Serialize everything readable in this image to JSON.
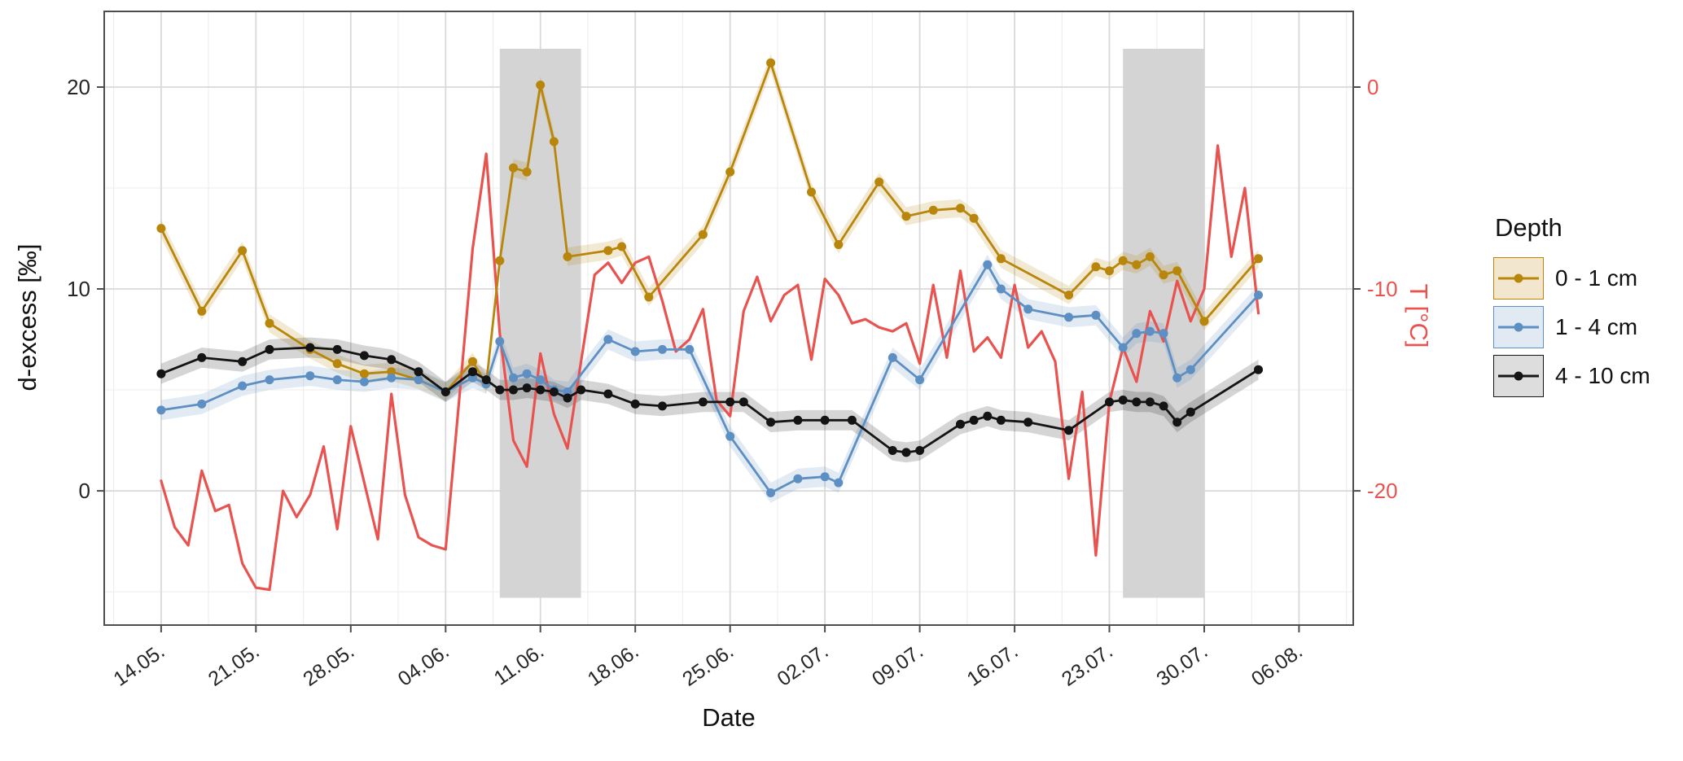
{
  "chart_data": {
    "type": "line",
    "xlabel": "Date",
    "ylabel_left": "d-excess [‰]",
    "ylabel_right": "T [°C]",
    "grid": true,
    "legend_position": "right",
    "x_domain_days": [
      -4.2,
      88.0
    ],
    "y_domain_left": [
      -6.65,
      23.75
    ],
    "x_ticks": {
      "days": [
        0,
        7,
        14,
        21,
        28,
        35,
        42,
        49,
        56,
        63,
        70,
        77,
        84
      ],
      "labels": [
        "14.05.",
        "21.05.",
        "28.05.",
        "04.06.",
        "11.06.",
        "18.06.",
        "25.06.",
        "02.07.",
        "09.07.",
        "16.07.",
        "23.07.",
        "30.07.",
        "06.08."
      ]
    },
    "y_ticks_left": {
      "values": [
        0,
        10,
        20
      ],
      "labels": [
        "0",
        "10",
        "20"
      ]
    },
    "y_ticks_left_minor": [
      -5,
      5,
      15
    ],
    "y_axis_right": {
      "tick_values": [
        0,
        -10,
        -20
      ],
      "labels": [
        "0",
        "-10",
        "-20"
      ],
      "offset_to_left_scale": 20,
      "color": "#E8534F"
    },
    "shaded_bands": {
      "color": "#d4d4d4",
      "day_ranges": [
        [
          25,
          31
        ],
        [
          71,
          77
        ]
      ],
      "value_range": [
        -5.3,
        21.9
      ]
    },
    "series": [
      {
        "name": "T",
        "axis": "right",
        "color": "#E8534F",
        "markers": false,
        "ribbon": 0,
        "days": [
          0,
          1,
          2,
          3,
          4,
          5,
          6,
          7,
          8,
          9,
          10,
          11,
          12,
          13,
          14,
          15,
          16,
          17,
          18,
          19,
          20,
          21,
          22,
          23,
          24,
          25,
          26,
          27,
          28,
          29,
          30,
          31,
          32,
          33,
          34,
          35,
          36,
          37,
          38,
          39,
          40,
          41,
          42,
          43,
          44,
          45,
          46,
          47,
          48,
          49,
          50,
          51,
          52,
          53,
          54,
          55,
          56,
          57,
          58,
          59,
          60,
          61,
          62,
          63,
          64,
          65,
          66,
          67,
          68,
          69,
          70,
          71,
          72,
          73,
          74,
          75,
          76,
          77,
          78,
          79,
          80,
          81
        ],
        "values": [
          -19.5,
          -21.8,
          -22.7,
          -19.0,
          -21.0,
          -20.7,
          -23.6,
          -24.8,
          -24.9,
          -20.0,
          -21.3,
          -20.2,
          -17.8,
          -21.9,
          -16.8,
          -19.6,
          -22.4,
          -15.2,
          -20.2,
          -22.3,
          -22.7,
          -22.9,
          -15.5,
          -8.0,
          -3.3,
          -12.2,
          -17.5,
          -18.8,
          -13.2,
          -16.2,
          -17.9,
          -13.6,
          -9.3,
          -8.7,
          -9.7,
          -8.7,
          -8.4,
          -10.6,
          -13.1,
          -12.5,
          -11.0,
          -15.5,
          -16.3,
          -11.1,
          -9.4,
          -11.6,
          -10.3,
          -9.8,
          -13.5,
          -9.5,
          -10.3,
          -11.7,
          -11.5,
          -11.9,
          -12.1,
          -11.7,
          -13.7,
          -9.8,
          -13.4,
          -9.1,
          -13.1,
          -12.4,
          -13.4,
          -9.8,
          -12.9,
          -12.1,
          -13.6,
          -19.4,
          -15.1,
          -23.2,
          -15.6,
          -12.9,
          -14.6,
          -11.1,
          -12.6,
          -9.6,
          -11.6,
          -10.0,
          -2.9,
          -8.4,
          -5.0,
          -11.2
        ]
      },
      {
        "name": "0 - 1 cm",
        "axis": "left",
        "color": "#B8860B",
        "markers": true,
        "ribbon": 0.45,
        "days": [
          0,
          3,
          6,
          8,
          11,
          13,
          15,
          17,
          19,
          21,
          23,
          24,
          25,
          26,
          27,
          28,
          29,
          30,
          33,
          34,
          36,
          40,
          42,
          45,
          48,
          50,
          53,
          55,
          57,
          59,
          60,
          62,
          67,
          69,
          70,
          71,
          72,
          73,
          74,
          75,
          77,
          81
        ],
        "values": [
          13.0,
          8.9,
          11.9,
          8.3,
          7.0,
          6.3,
          5.8,
          5.9,
          5.5,
          4.9,
          6.4,
          5.3,
          11.4,
          16.0,
          15.8,
          20.1,
          17.3,
          11.6,
          11.9,
          12.1,
          9.6,
          12.7,
          15.8,
          21.2,
          14.8,
          12.2,
          15.3,
          13.6,
          13.9,
          14.0,
          13.5,
          11.5,
          9.7,
          11.1,
          10.9,
          11.4,
          11.2,
          11.6,
          10.7,
          10.9,
          8.4,
          11.5
        ]
      },
      {
        "name": "1 - 4 cm",
        "axis": "left",
        "color": "#5E8FC3",
        "markers": true,
        "ribbon": 0.5,
        "days": [
          0,
          3,
          6,
          8,
          11,
          13,
          15,
          17,
          19,
          21,
          23,
          24,
          25,
          26,
          27,
          28,
          29,
          30,
          33,
          35,
          37,
          39,
          42,
          45,
          47,
          49,
          50,
          54,
          56,
          61,
          62,
          64,
          67,
          69,
          71,
          72,
          73,
          74,
          75,
          76,
          81
        ],
        "values": [
          4.0,
          4.3,
          5.2,
          5.5,
          5.7,
          5.5,
          5.4,
          5.6,
          5.5,
          4.9,
          5.6,
          5.3,
          7.4,
          5.6,
          5.8,
          5.5,
          5.0,
          4.9,
          7.5,
          6.9,
          7.0,
          7.0,
          2.7,
          -0.1,
          0.6,
          0.7,
          0.4,
          6.6,
          5.5,
          11.2,
          10.0,
          9.0,
          8.6,
          8.7,
          7.1,
          7.8,
          7.9,
          7.8,
          5.6,
          6.0,
          9.7
        ]
      },
      {
        "name": "4 - 10 cm",
        "axis": "left",
        "color": "#141414",
        "markers": true,
        "ribbon": 0.5,
        "days": [
          0,
          3,
          6,
          8,
          11,
          13,
          15,
          17,
          19,
          21,
          23,
          24,
          25,
          26,
          27,
          28,
          29,
          30,
          31,
          33,
          35,
          37,
          40,
          42,
          43,
          45,
          47,
          49,
          51,
          54,
          55,
          56,
          59,
          60,
          61,
          62,
          64,
          67,
          70,
          71,
          72,
          73,
          74,
          75,
          76,
          81
        ],
        "values": [
          5.8,
          6.6,
          6.4,
          7.0,
          7.1,
          7.0,
          6.7,
          6.5,
          5.9,
          4.9,
          5.9,
          5.5,
          5.0,
          5.0,
          5.1,
          5.0,
          4.9,
          4.6,
          5.0,
          4.8,
          4.3,
          4.2,
          4.4,
          4.4,
          4.4,
          3.4,
          3.5,
          3.5,
          3.5,
          2.0,
          1.9,
          2.0,
          3.3,
          3.5,
          3.7,
          3.5,
          3.4,
          3.0,
          4.4,
          4.5,
          4.4,
          4.4,
          4.2,
          3.4,
          3.9,
          6.0
        ]
      }
    ],
    "legend": {
      "title": "Depth",
      "entries": [
        {
          "label": "0 - 1 cm",
          "color": "#B8860B",
          "fill": "#f2e7ce"
        },
        {
          "label": "1 - 4 cm",
          "color": "#5E8FC3",
          "fill": "#e1e9f3"
        },
        {
          "label": "4 - 10 cm",
          "color": "#141414",
          "fill": "#dddddd"
        }
      ]
    }
  }
}
